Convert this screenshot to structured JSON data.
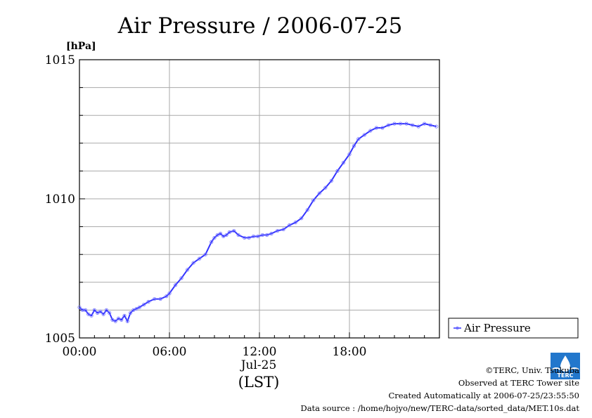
{
  "chart_data": {
    "type": "line",
    "title": "Air Pressure / 2006-07-25",
    "ylabel": "[hPa]",
    "ylim": [
      1005,
      1015
    ],
    "y_ticks": [
      1005,
      1010,
      1015
    ],
    "y_tick_labels": [
      "1005",
      "1010",
      "1015"
    ],
    "y_grid_step": 1,
    "xlim": [
      0,
      24
    ],
    "x_ticks": [
      0,
      6,
      12,
      18
    ],
    "x_tick_labels": [
      "00:00",
      "06:00",
      "12:00",
      "18:00"
    ],
    "x_date_label": "Jul-25",
    "x_timezone_label": "(LST)",
    "grid": true,
    "legend_position": "right",
    "series": [
      {
        "name": "Air Pressure",
        "color": "#3333ff",
        "x": [
          0.0,
          0.2,
          0.4,
          0.6,
          0.8,
          1.0,
          1.2,
          1.4,
          1.6,
          1.8,
          2.0,
          2.2,
          2.4,
          2.6,
          2.8,
          3.0,
          3.2,
          3.4,
          3.6,
          3.8,
          4.0,
          4.3,
          4.6,
          5.0,
          5.4,
          5.8,
          6.0,
          6.4,
          6.8,
          7.2,
          7.6,
          8.0,
          8.4,
          8.8,
          9.0,
          9.2,
          9.4,
          9.6,
          9.8,
          10.0,
          10.3,
          10.6,
          11.0,
          11.3,
          11.6,
          11.9,
          12.2,
          12.5,
          12.8,
          13.2,
          13.6,
          14.0,
          14.4,
          14.8,
          15.2,
          15.6,
          16.0,
          16.4,
          16.8,
          17.2,
          17.6,
          18.0,
          18.3,
          18.6,
          19.0,
          19.4,
          19.8,
          20.2,
          20.6,
          21.0,
          21.4,
          21.8,
          22.2,
          22.6,
          23.0,
          23.4,
          23.8
        ],
        "values": [
          1006.1,
          1006.0,
          1006.0,
          1005.85,
          1005.8,
          1006.0,
          1005.9,
          1005.95,
          1005.85,
          1006.0,
          1005.9,
          1005.65,
          1005.6,
          1005.7,
          1005.65,
          1005.8,
          1005.6,
          1005.9,
          1006.0,
          1006.05,
          1006.1,
          1006.2,
          1006.3,
          1006.4,
          1006.4,
          1006.5,
          1006.6,
          1006.9,
          1007.15,
          1007.45,
          1007.7,
          1007.85,
          1008.0,
          1008.45,
          1008.6,
          1008.7,
          1008.75,
          1008.65,
          1008.7,
          1008.8,
          1008.85,
          1008.7,
          1008.6,
          1008.6,
          1008.65,
          1008.65,
          1008.7,
          1008.7,
          1008.75,
          1008.85,
          1008.9,
          1009.05,
          1009.15,
          1009.3,
          1009.6,
          1009.95,
          1010.2,
          1010.4,
          1010.65,
          1011.0,
          1011.3,
          1011.6,
          1011.9,
          1012.15,
          1012.3,
          1012.45,
          1012.55,
          1012.55,
          1012.65,
          1012.7,
          1012.7,
          1012.7,
          1012.65,
          1012.6,
          1012.7,
          1012.65,
          1012.6
        ]
      }
    ]
  },
  "credits": {
    "line1": "©TERC, Univ. Tsukuba",
    "line2": "Observed at TERC Tower site",
    "line3": "Created Automatically at 2006-07-25/23:55:50",
    "line4": "Data source : /home/hojyo/new/TERC-data/sorted_data/MET.10s.dat"
  },
  "logo": {
    "label": "TERC",
    "color": "#2277cc"
  }
}
